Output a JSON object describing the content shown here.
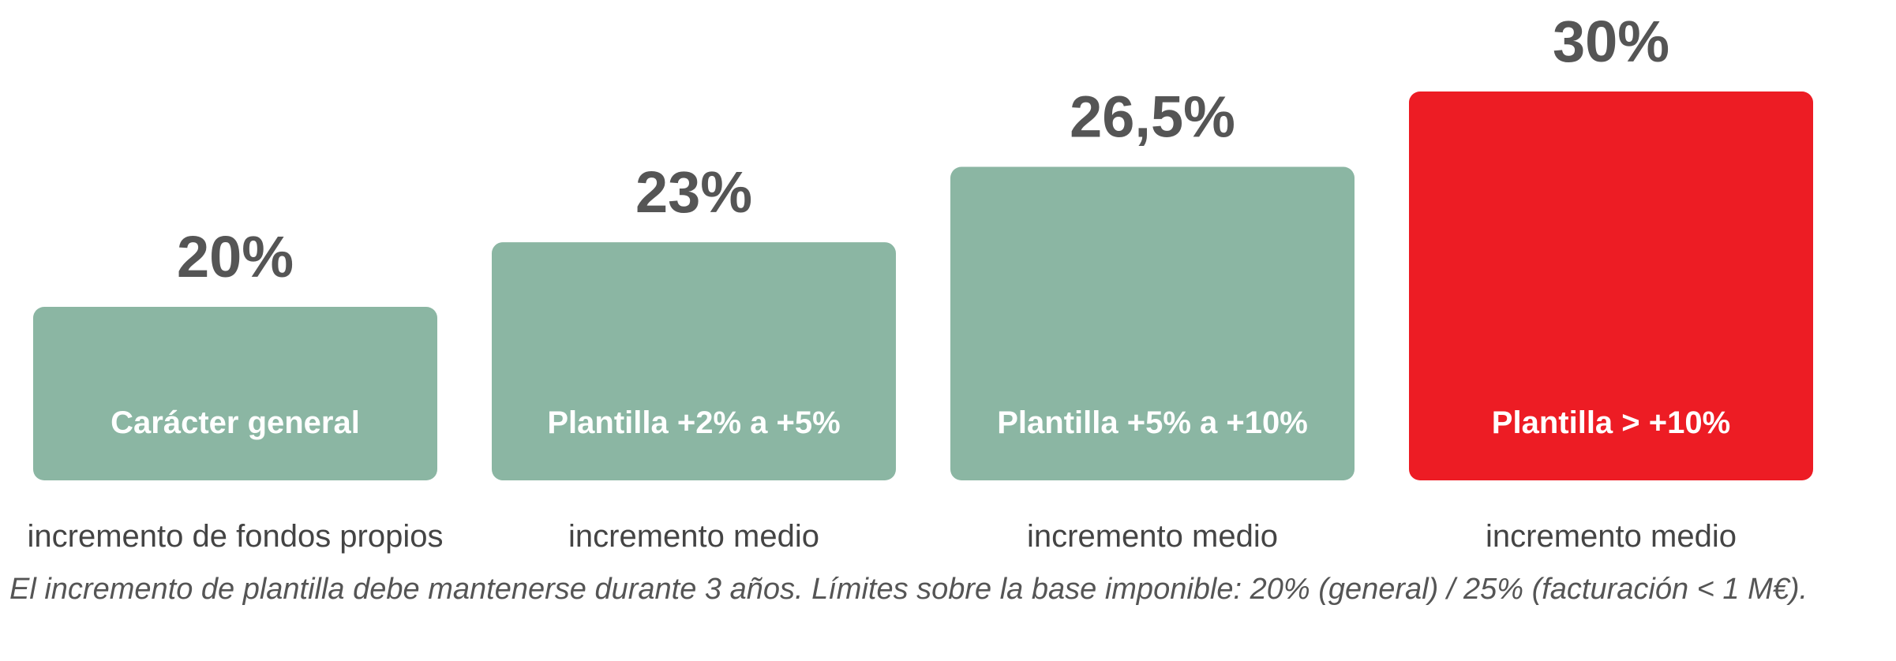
{
  "chart_data": {
    "type": "bar",
    "categories": [
      "Carácter general",
      "Plantilla +2% a +5%",
      "Plantilla +5% a +10%",
      "Plantilla > +10%"
    ],
    "values": [
      20,
      23,
      26.5,
      30
    ],
    "value_labels": [
      "20%",
      "23%",
      "26,5%",
      "30%"
    ],
    "sub_labels": [
      "incremento de fondos propios",
      "incremento medio",
      "incremento medio",
      "incremento medio"
    ],
    "colors": [
      "#8bb6a3",
      "#8bb6a3",
      "#8bb6a3",
      "#ed1c24"
    ],
    "title": "",
    "xlabel": "",
    "ylabel": "",
    "grid": false,
    "legend": "none"
  },
  "footnote": "El incremento de plantilla debe mantenerse durante 3 años. Límites sobre la base imponible: 20% (general) / 25% (facturación < 1 M€)."
}
